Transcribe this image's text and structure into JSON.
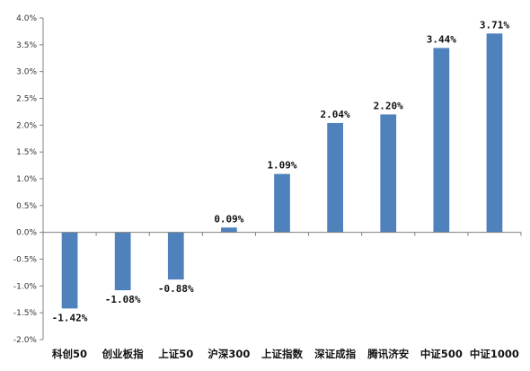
{
  "chart_data": {
    "type": "bar",
    "title": "",
    "xlabel": "",
    "ylabel": "",
    "categories": [
      "科创50",
      "创业板指",
      "上证50",
      "沪深300",
      "上证指数",
      "深证成指",
      "腾讯济安",
      "中证500",
      "中证1000"
    ],
    "values": [
      -1.42,
      -1.08,
      -0.88,
      0.09,
      1.09,
      2.04,
      2.2,
      3.44,
      3.71
    ],
    "data_labels": [
      "-1.42%",
      "-1.08%",
      "-0.88%",
      "0.09%",
      "1.09%",
      "2.04%",
      "2.20%",
      "3.44%",
      "3.71%"
    ],
    "ylim": [
      -2.0,
      4.0
    ],
    "yticks": [
      4.0,
      3.5,
      3.0,
      2.5,
      2.0,
      1.5,
      1.0,
      0.5,
      0.0,
      -0.5,
      -1.0,
      -1.5,
      -2.0
    ],
    "ytick_labels": [
      "4.0%",
      "3.5%",
      "3.0%",
      "2.5%",
      "2.0%",
      "1.5%",
      "1.0%",
      "0.5%",
      "0.0%",
      "-0.5%",
      "-1.0%",
      "-1.5%",
      "-2.0%"
    ],
    "grid": false,
    "legend": "none",
    "bar_color": "#4f81bd",
    "axis_color": "#808080"
  }
}
